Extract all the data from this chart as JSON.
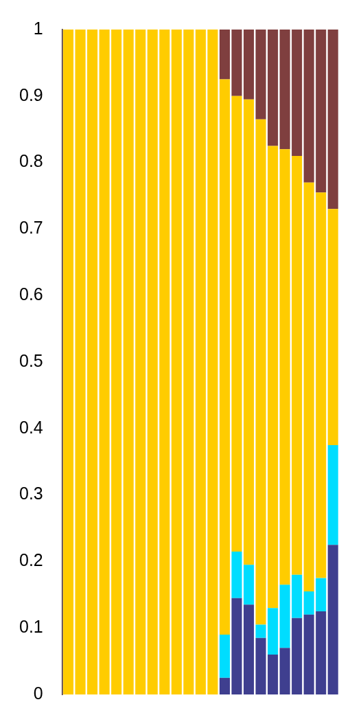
{
  "chart_data": {
    "type": "bar",
    "stacked": true,
    "categories": [
      null,
      null,
      null,
      null,
      null,
      null,
      null,
      null,
      null,
      null,
      null,
      null,
      null,
      null,
      null,
      null,
      null,
      null,
      null,
      null,
      null,
      null,
      null
    ],
    "series": [
      {
        "color": "#3f3f8f",
        "values": [
          0,
          0,
          0,
          0,
          0,
          0,
          0,
          0,
          0,
          0,
          0,
          0,
          0,
          0.025,
          0.145,
          0.135,
          0.085,
          0.06,
          0.07,
          0.115,
          0.12,
          0.125,
          0.225
        ]
      },
      {
        "color": "#00ddff",
        "values": [
          0,
          0,
          0,
          0,
          0,
          0,
          0,
          0,
          0,
          0,
          0,
          0,
          0,
          0.065,
          0.07,
          0.06,
          0.02,
          0.07,
          0.095,
          0.065,
          0.035,
          0.05,
          0.15
        ]
      },
      {
        "color": "#ffcc00",
        "values": [
          1,
          1,
          1,
          1,
          1,
          1,
          1,
          1,
          1,
          1,
          1,
          1,
          1,
          0.835,
          0.685,
          0.7,
          0.76,
          0.695,
          0.655,
          0.63,
          0.615,
          0.58,
          0.355
        ]
      },
      {
        "color": "#7f3f3f",
        "values": [
          0,
          0,
          0,
          0,
          0,
          0,
          0,
          0,
          0,
          0,
          0,
          0,
          0,
          0.075,
          0.1,
          0.105,
          0.135,
          0.175,
          0.18,
          0.19,
          0.23,
          0.245,
          0.27
        ]
      }
    ],
    "ylim": [
      0,
      1
    ],
    "yticks": [
      0,
      0.1,
      0.2,
      0.3,
      0.4,
      0.5,
      0.6,
      0.7,
      0.8,
      0.9,
      1
    ],
    "tick_labels": "y"
  }
}
